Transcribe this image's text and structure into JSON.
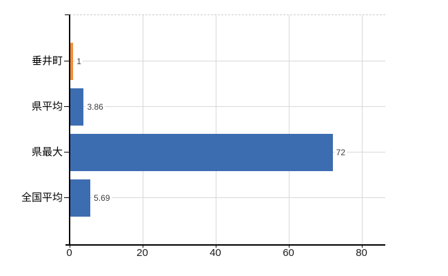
{
  "chart_data": {
    "type": "bar",
    "orientation": "horizontal",
    "title": "",
    "categories": [
      "垂井町",
      "県平均",
      "県最大",
      "全国平均"
    ],
    "values": [
      1,
      3.86,
      72,
      5.69
    ],
    "value_labels": [
      "1",
      "3.86",
      "72",
      "5.69"
    ],
    "bar_colors": [
      "#ef8e3a",
      "#3d6db1",
      "#3d6db1",
      "#3d6db1"
    ],
    "xlim": [
      0,
      86.4
    ],
    "x_ticks": [
      0,
      20,
      40,
      60,
      80
    ],
    "x_tick_labels": [
      "0",
      "20",
      "40",
      "60",
      "80"
    ],
    "xlabel": "",
    "ylabel": "",
    "grid": true,
    "legend": false,
    "style": {
      "highlight_color": "#ef8e3a",
      "series_color": "#3d6db1",
      "grid_color": "#d8d8d8",
      "axis_color": "#000000",
      "top_border_color": "#cbcbcb",
      "top_border_style": "dashed",
      "value_label_color": "#3d3d3d",
      "tick_label_color": "#1a1a1a",
      "background": "#ffffff"
    }
  }
}
